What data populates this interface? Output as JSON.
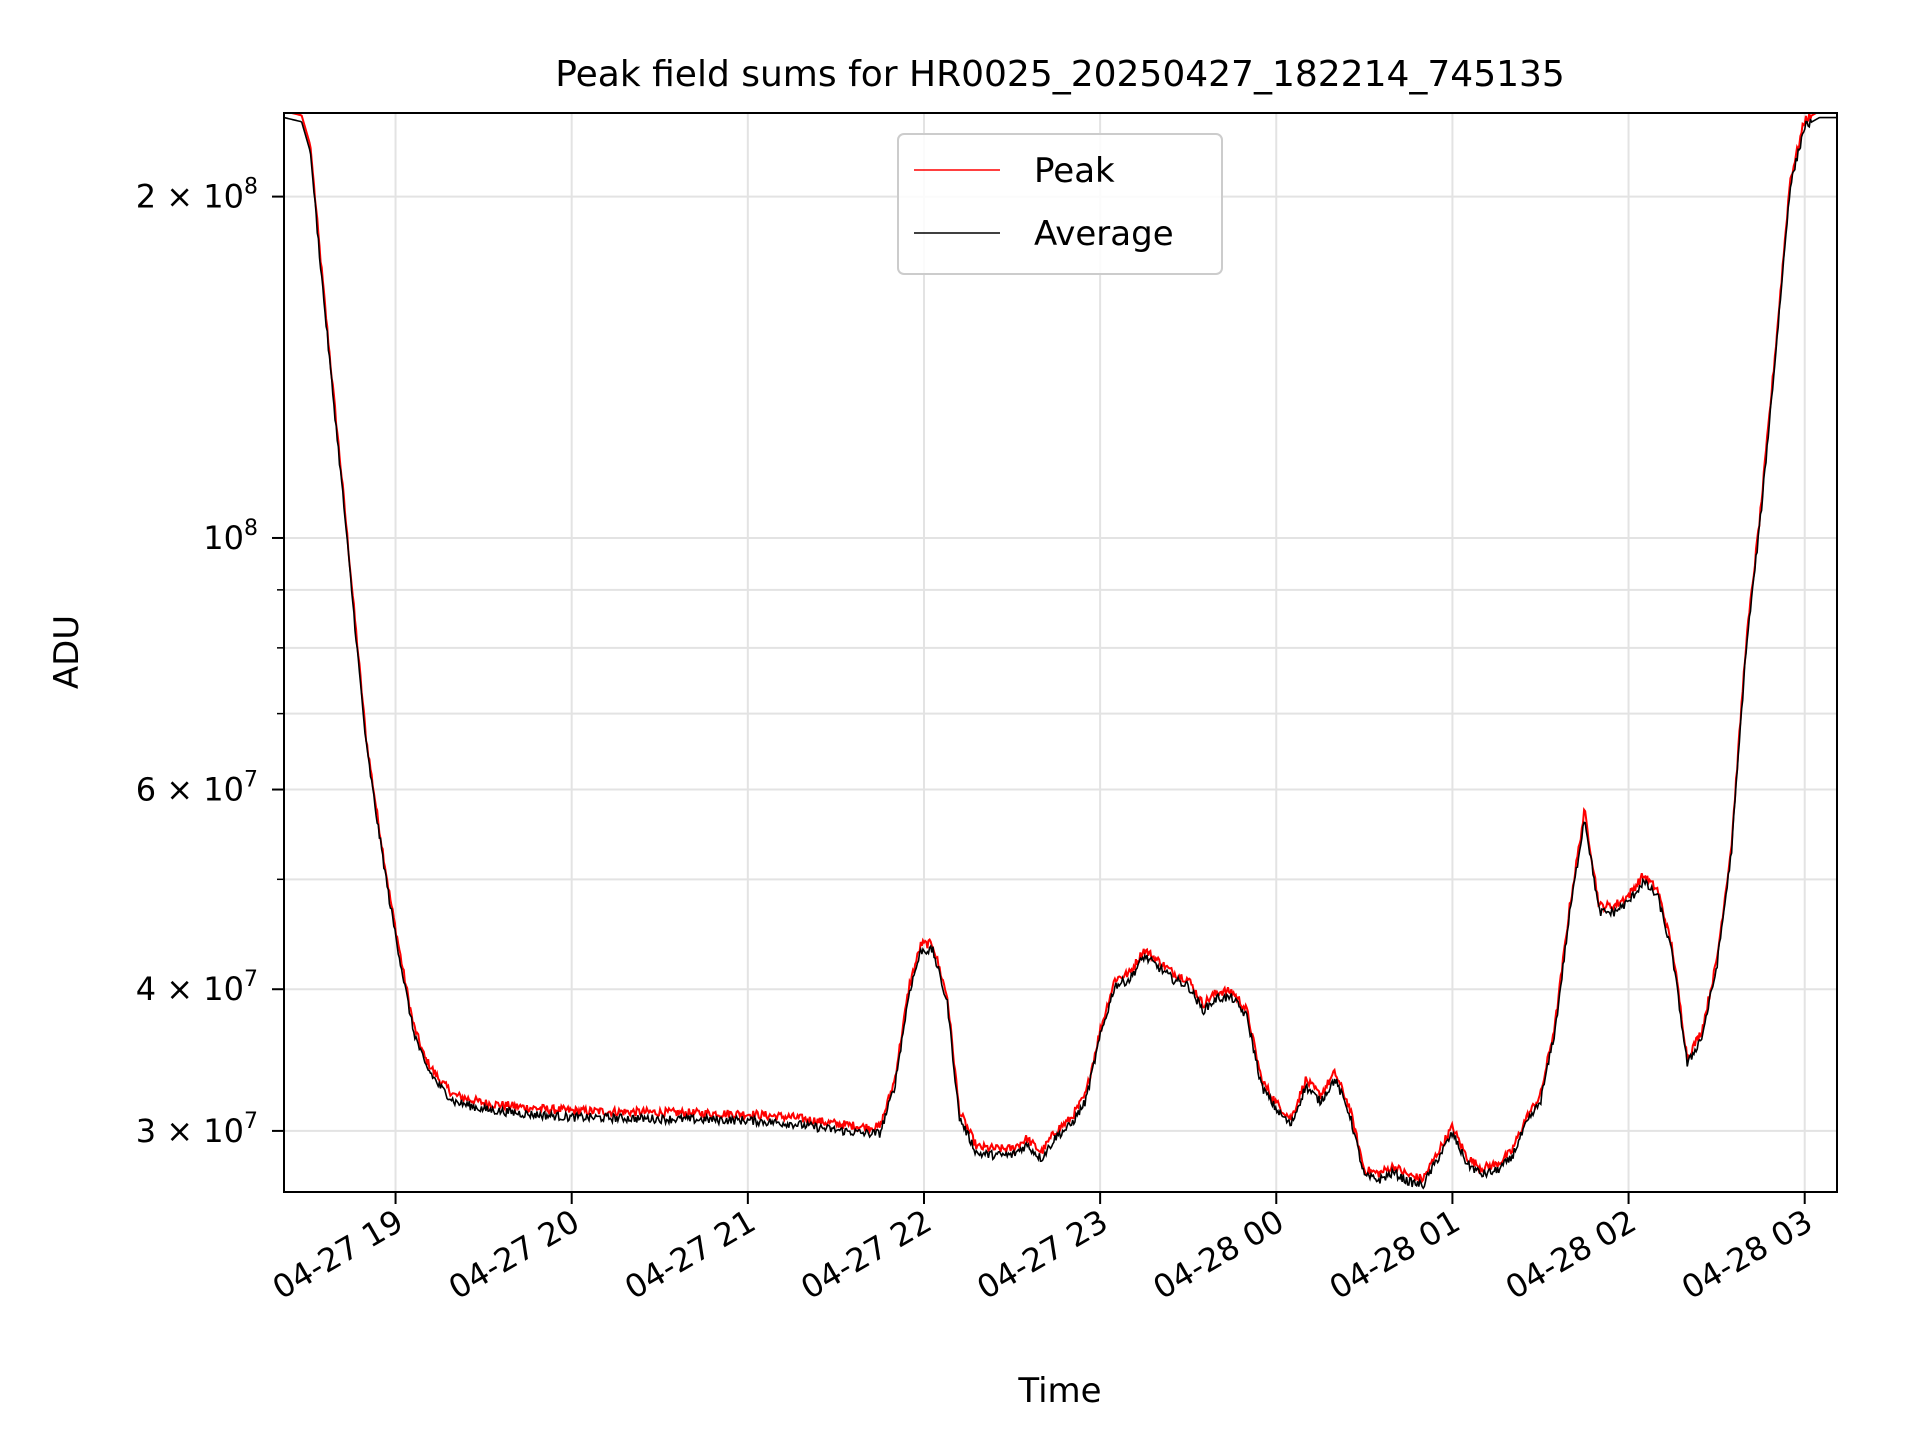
{
  "chart_data": {
    "type": "line",
    "title": "Peak field sums for HR0025_20250427_182214_745135",
    "xlabel": "Time",
    "ylabel": "ADU",
    "y_scale": "log",
    "ylim": [
      26500000,
      237000000
    ],
    "xlim": [
      "2025-04-27 18:22",
      "2025-04-28 03:11"
    ],
    "grid": true,
    "legend_position": "top-center",
    "x_ticks": [
      {
        "t": "2025-04-27 19:00",
        "label": "04-27 19"
      },
      {
        "t": "2025-04-27 20:00",
        "label": "04-27 20"
      },
      {
        "t": "2025-04-27 21:00",
        "label": "04-27 21"
      },
      {
        "t": "2025-04-27 22:00",
        "label": "04-27 22"
      },
      {
        "t": "2025-04-27 23:00",
        "label": "04-27 23"
      },
      {
        "t": "2025-04-28 00:00",
        "label": "04-28 00"
      },
      {
        "t": "2025-04-28 01:00",
        "label": "04-28 01"
      },
      {
        "t": "2025-04-28 02:00",
        "label": "04-28 02"
      },
      {
        "t": "2025-04-28 03:00",
        "label": "04-28 03"
      }
    ],
    "y_ticks": [
      {
        "v": 30000000,
        "base": "3 × 10",
        "exp": "7"
      },
      {
        "v": 40000000,
        "base": "4 × 10",
        "exp": "7"
      },
      {
        "v": 60000000,
        "base": "6 × 10",
        "exp": "7"
      },
      {
        "v": 100000000,
        "base": "10",
        "exp": "8"
      },
      {
        "v": 200000000,
        "base": "2 × 10",
        "exp": "8"
      }
    ],
    "y_minor_ticks": [
      50000000,
      70000000,
      80000000,
      90000000
    ],
    "series": [
      {
        "name": "Peak",
        "color": "#ff0000",
        "offset_factor": 1.008,
        "noise": 0.009
      },
      {
        "name": "Average",
        "color": "#000000",
        "offset_factor": 0.995,
        "noise": 0.009
      }
    ],
    "x": [
      "2025-04-27 18:22",
      "2025-04-27 18:28",
      "2025-04-27 18:31",
      "2025-04-27 18:34",
      "2025-04-27 18:38",
      "2025-04-27 18:42",
      "2025-04-27 18:46",
      "2025-04-27 18:50",
      "2025-04-27 18:54",
      "2025-04-27 18:58",
      "2025-04-27 19:02",
      "2025-04-27 19:06",
      "2025-04-27 19:10",
      "2025-04-27 19:15",
      "2025-04-27 19:20",
      "2025-04-27 19:30",
      "2025-04-27 19:45",
      "2025-04-27 20:00",
      "2025-04-27 20:30",
      "2025-04-27 21:00",
      "2025-04-27 21:15",
      "2025-04-27 21:30",
      "2025-04-27 21:40",
      "2025-04-27 21:45",
      "2025-04-27 21:50",
      "2025-04-27 21:55",
      "2025-04-27 21:59",
      "2025-04-27 22:03",
      "2025-04-27 22:08",
      "2025-04-27 22:12",
      "2025-04-27 22:18",
      "2025-04-27 22:25",
      "2025-04-27 22:30",
      "2025-04-27 22:35",
      "2025-04-27 22:40",
      "2025-04-27 22:45",
      "2025-04-27 22:50",
      "2025-04-27 22:55",
      "2025-04-27 23:00",
      "2025-04-27 23:05",
      "2025-04-27 23:10",
      "2025-04-27 23:15",
      "2025-04-27 23:20",
      "2025-04-27 23:25",
      "2025-04-27 23:30",
      "2025-04-27 23:35",
      "2025-04-27 23:40",
      "2025-04-27 23:45",
      "2025-04-27 23:50",
      "2025-04-27 23:55",
      "2025-04-28 00:00",
      "2025-04-28 00:05",
      "2025-04-28 00:10",
      "2025-04-28 00:15",
      "2025-04-28 00:20",
      "2025-04-28 00:25",
      "2025-04-28 00:30",
      "2025-04-28 00:35",
      "2025-04-28 00:40",
      "2025-04-28 00:45",
      "2025-04-28 00:50",
      "2025-04-28 00:55",
      "2025-04-28 01:00",
      "2025-04-28 01:05",
      "2025-04-28 01:10",
      "2025-04-28 01:15",
      "2025-04-28 01:20",
      "2025-04-28 01:25",
      "2025-04-28 01:30",
      "2025-04-28 01:35",
      "2025-04-28 01:40",
      "2025-04-28 01:45",
      "2025-04-28 01:50",
      "2025-04-28 01:55",
      "2025-04-28 02:00",
      "2025-04-28 02:05",
      "2025-04-28 02:10",
      "2025-04-28 02:15",
      "2025-04-28 02:20",
      "2025-04-28 02:25",
      "2025-04-28 02:30",
      "2025-04-28 02:35",
      "2025-04-28 02:40",
      "2025-04-28 02:45",
      "2025-04-28 02:50",
      "2025-04-28 02:55",
      "2025-04-28 03:00",
      "2025-04-28 03:05",
      "2025-04-28 03:11"
    ],
    "y": [
      236000000,
      234000000,
      220000000,
      180000000,
      140000000,
      110000000,
      85000000,
      66000000,
      56000000,
      48000000,
      42000000,
      37000000,
      34500000,
      33000000,
      32000000,
      31500000,
      31200000,
      31000000,
      30900000,
      30800000,
      30600000,
      30200000,
      30000000,
      30000000,
      33000000,
      40000000,
      43500000,
      43500000,
      39000000,
      31000000,
      28800000,
      28700000,
      28700000,
      29300000,
      28500000,
      29800000,
      30500000,
      32000000,
      36500000,
      40500000,
      41000000,
      43000000,
      42000000,
      41000000,
      40500000,
      38500000,
      39500000,
      39500000,
      38000000,
      33000000,
      31500000,
      30500000,
      33000000,
      32000000,
      33500000,
      31200000,
      27500000,
      27300000,
      27700000,
      27200000,
      27000000,
      28500000,
      30000000,
      28200000,
      27600000,
      27800000,
      28500000,
      30500000,
      32000000,
      37000000,
      47000000,
      57000000,
      47000000,
      47000000,
      48000000,
      50000000,
      48500000,
      43000000,
      34500000,
      36500000,
      42000000,
      53000000,
      80000000,
      105000000,
      145000000,
      205000000,
      232000000,
      236000000,
      236000000
    ]
  }
}
